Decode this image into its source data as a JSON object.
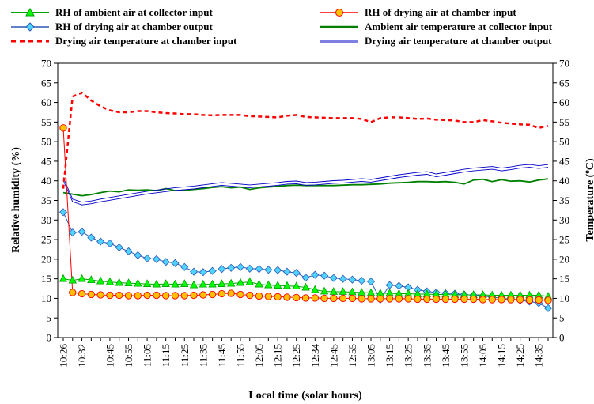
{
  "chart_data": {
    "type": "line",
    "xlabel": "Local time (solar hours)",
    "ylabel_left": "Relative humidity (%)",
    "ylabel_right": "Temperature (°C)",
    "ylabel_right_parts": {
      "before": "Temperature (",
      "superscript": "o",
      "after": "C)"
    },
    "ylim": [
      0,
      70
    ],
    "y_ticks": [
      0,
      5,
      10,
      15,
      20,
      25,
      30,
      35,
      40,
      45,
      50,
      55,
      60,
      65,
      70
    ],
    "x_tick_labels": [
      "10:26",
      "10:32",
      "10:45",
      "10:55",
      "11:05",
      "11:15",
      "11:25",
      "11:35",
      "11:45",
      "11:55",
      "12:05",
      "12:15",
      "12:25",
      "12:34",
      "12:45",
      "12:55",
      "13:05",
      "13:15",
      "13:25",
      "13:35",
      "13:45",
      "13:55",
      "14:05",
      "14:15",
      "14:25",
      "14:35"
    ],
    "x_tick_index": [
      0,
      2,
      5,
      7,
      9,
      11,
      13,
      15,
      17,
      19,
      21,
      23,
      25,
      27,
      29,
      31,
      33,
      35,
      37,
      39,
      41,
      43,
      45,
      47,
      49,
      51
    ],
    "points_count": 53,
    "grid": false,
    "legend_position": "top",
    "colors": {
      "rh_ambient": "#00a000",
      "rh_chamber_input": "#ff0000",
      "rh_chamber_input_fill": "#ffc000",
      "rh_chamber_output": "#2b58b8",
      "rh_chamber_output_fill": "#4fd3ff",
      "t_ambient": "#008000",
      "t_chamber_input": "#ff0000",
      "t_chamber_output": "#0000c8"
    },
    "series": [
      {
        "id": "rh_ambient",
        "name": "RH of ambient air at collector input",
        "axis": "left",
        "values": [
          15.0,
          14.6,
          15.0,
          14.7,
          14.4,
          14.2,
          14.0,
          13.9,
          13.8,
          13.7,
          13.6,
          13.7,
          13.6,
          13.7,
          13.4,
          13.6,
          13.6,
          13.7,
          13.8,
          14.0,
          14.2,
          13.6,
          13.4,
          13.3,
          13.2,
          13.1,
          12.8,
          12.2,
          11.8,
          11.7,
          11.7,
          11.6,
          11.5,
          11.4,
          11.3,
          11.3,
          11.2,
          11.2,
          11.1,
          11.1,
          11.0,
          11.0,
          10.9,
          10.9,
          10.9,
          10.9,
          10.8,
          10.8,
          10.8,
          10.8,
          10.8,
          10.8,
          10.5
        ]
      },
      {
        "id": "rh_chamber_input",
        "name": "RH of drying air at chamber input",
        "axis": "left",
        "values": [
          53.5,
          11.5,
          11.2,
          11.0,
          10.9,
          10.8,
          10.8,
          10.7,
          10.7,
          10.8,
          10.8,
          10.7,
          10.7,
          10.7,
          10.8,
          10.9,
          11.0,
          11.2,
          11.3,
          11.0,
          10.8,
          10.6,
          10.5,
          10.4,
          10.3,
          10.2,
          10.1,
          10.1,
          10.0,
          10.0,
          10.0,
          10.0,
          9.9,
          9.9,
          9.9,
          9.9,
          9.9,
          9.9,
          9.8,
          9.8,
          9.8,
          9.8,
          9.8,
          9.8,
          9.8,
          9.7,
          9.7,
          9.7,
          9.7,
          9.7,
          9.6,
          9.6,
          9.5
        ]
      },
      {
        "id": "rh_chamber_output",
        "name": "RH of drying air at chamber output",
        "axis": "left",
        "values": [
          32.0,
          26.8,
          27.0,
          25.5,
          24.5,
          24.0,
          23.0,
          22.0,
          21.0,
          20.2,
          20.0,
          19.3,
          19.0,
          18.0,
          16.8,
          16.7,
          17.0,
          17.5,
          17.8,
          18.0,
          17.6,
          17.5,
          17.3,
          17.2,
          16.8,
          16.5,
          15.3,
          16.0,
          15.8,
          15.2,
          15.0,
          14.8,
          14.5,
          14.3,
          9.7,
          13.4,
          13.2,
          12.8,
          12.2,
          11.8,
          11.5,
          11.3,
          11.2,
          11.0,
          10.8,
          10.6,
          10.3,
          10.0,
          9.8,
          9.5,
          9.2,
          8.8,
          7.5
        ]
      },
      {
        "id": "t_ambient",
        "name": "Ambient air temperature at collector input",
        "axis": "right",
        "values": [
          37.0,
          36.6,
          36.2,
          36.5,
          37.0,
          37.4,
          37.2,
          37.7,
          37.6,
          37.7,
          37.5,
          38.0,
          37.5,
          37.6,
          37.8,
          38.0,
          38.3,
          38.5,
          38.2,
          38.4,
          37.8,
          38.2,
          38.4,
          38.6,
          38.8,
          38.9,
          38.8,
          38.8,
          38.8,
          38.8,
          38.9,
          39.0,
          39.0,
          39.1,
          39.2,
          39.4,
          39.5,
          39.6,
          39.8,
          39.8,
          39.7,
          39.8,
          39.6,
          39.2,
          40.2,
          40.4,
          39.8,
          40.3,
          39.9,
          40.0,
          39.7,
          40.2,
          40.5
        ]
      },
      {
        "id": "t_chamber_input",
        "name": "Drying air temperature at chamber input",
        "axis": "right",
        "values": [
          38.0,
          61.5,
          62.5,
          60.5,
          59.0,
          58.0,
          57.5,
          57.5,
          57.8,
          57.8,
          57.5,
          57.3,
          57.2,
          57.0,
          57.0,
          56.8,
          56.7,
          56.8,
          56.8,
          56.8,
          56.5,
          56.4,
          56.3,
          56.2,
          56.6,
          56.8,
          56.3,
          56.2,
          56.1,
          56.0,
          56.0,
          56.0,
          55.8,
          55.0,
          56.0,
          56.2,
          56.2,
          56.0,
          55.8,
          55.9,
          55.6,
          55.5,
          55.4,
          55.0,
          55.0,
          55.5,
          55.2,
          54.8,
          54.6,
          54.4,
          54.3,
          53.5,
          54.0
        ]
      },
      {
        "id": "t_chamber_output",
        "name": "Drying air temperature at chamber output",
        "axis": "right",
        "values": [
          40.5,
          35.0,
          34.2,
          34.5,
          35.0,
          35.4,
          35.8,
          36.2,
          36.6,
          37.0,
          37.3,
          37.6,
          37.9,
          38.1,
          38.3,
          38.6,
          38.9,
          39.2,
          39.0,
          38.8,
          38.6,
          38.8,
          39.0,
          39.2,
          39.5,
          39.6,
          39.2,
          39.3,
          39.5,
          39.7,
          39.8,
          40.0,
          40.2,
          40.0,
          40.4,
          40.8,
          41.2,
          41.5,
          41.8,
          42.0,
          41.4,
          41.8,
          42.2,
          42.6,
          42.9,
          43.1,
          43.3,
          42.9,
          43.2,
          43.6,
          43.8,
          43.5,
          43.8
        ]
      }
    ],
    "legend": [
      {
        "series": "rh_ambient",
        "label": "RH of ambient air at collector input"
      },
      {
        "series": "rh_chamber_input",
        "label": "RH of drying air at chamber input"
      },
      {
        "series": "rh_chamber_output",
        "label": "RH of drying air at chamber output"
      },
      {
        "series": "t_ambient",
        "label": "Ambient air temperature at collector input"
      },
      {
        "series": "t_chamber_input",
        "label": "Drying air temperature at chamber input"
      },
      {
        "series": "t_chamber_output",
        "label": "Drying air temperature at chamber output"
      }
    ]
  }
}
